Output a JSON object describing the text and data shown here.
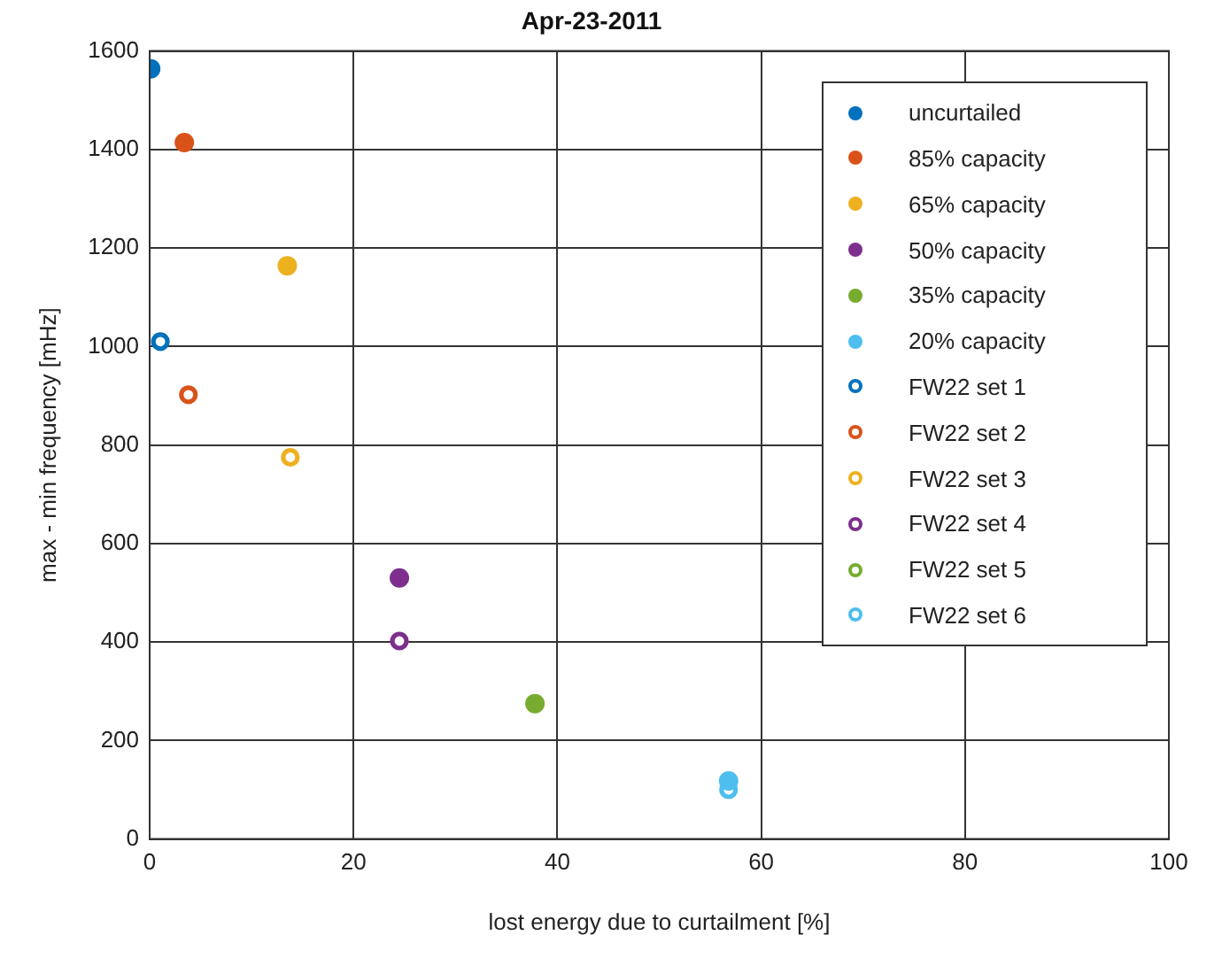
{
  "chart_data": {
    "type": "scatter",
    "title": "Apr-23-2011",
    "xlabel": "lost energy due to curtailment [%]",
    "ylabel": "max - min frequency [mHz]",
    "xlim": [
      0,
      100
    ],
    "xticks": [
      0,
      20,
      40,
      60,
      80,
      100
    ],
    "ylim": [
      0,
      1600
    ],
    "yticks": [
      0,
      200,
      400,
      600,
      800,
      1000,
      1200,
      1400,
      1600
    ],
    "grid": true,
    "legend": "top right",
    "marker": "circle",
    "series": [
      {
        "name": "uncurtailed",
        "color": "#0072bd",
        "x": [
          0.1
        ],
        "values": [
          1564
        ]
      },
      {
        "name": "85% capacity",
        "color": "#d95319",
        "x": [
          3.4
        ],
        "values": [
          1414
        ]
      },
      {
        "name": "65% capacity",
        "color": "#edb120",
        "x": [
          13.5
        ],
        "values": [
          1164
        ]
      },
      {
        "name": "50% capacity",
        "color": "#7e2f8e",
        "x": [
          24.5
        ],
        "values": [
          530
        ]
      },
      {
        "name": "35% capacity",
        "color": "#77ac30",
        "x": [
          37.8
        ],
        "values": [
          275
        ]
      },
      {
        "name": "20% capacity",
        "color": "#4dbeee",
        "x": [
          56.8
        ],
        "values": [
          118
        ]
      },
      {
        "name": "FW22 set 1",
        "color": "#0072bd",
        "x": [
          1.05
        ],
        "values": [
          1010
        ],
        "marker": "open circle"
      },
      {
        "name": "FW22 set 2",
        "color": "#d95319",
        "x": [
          3.8
        ],
        "values": [
          902
        ],
        "marker": "open circle"
      },
      {
        "name": "FW22 set 3",
        "color": "#edb120",
        "x": [
          13.8
        ],
        "values": [
          775
        ],
        "marker": "open circle"
      },
      {
        "name": "FW22 set 4",
        "color": "#7e2f8e",
        "x": [
          24.5
        ],
        "values": [
          402
        ],
        "marker": "open circle"
      },
      {
        "name": "FW22 set 5",
        "color": "#77ac30",
        "x": [
          null
        ],
        "values": [
          null
        ],
        "marker": "open circle"
      },
      {
        "name": "FW22 set 6",
        "color": "#4dbeee",
        "x": [
          56.8
        ],
        "values": [
          100
        ],
        "marker": "open circle"
      }
    ]
  }
}
